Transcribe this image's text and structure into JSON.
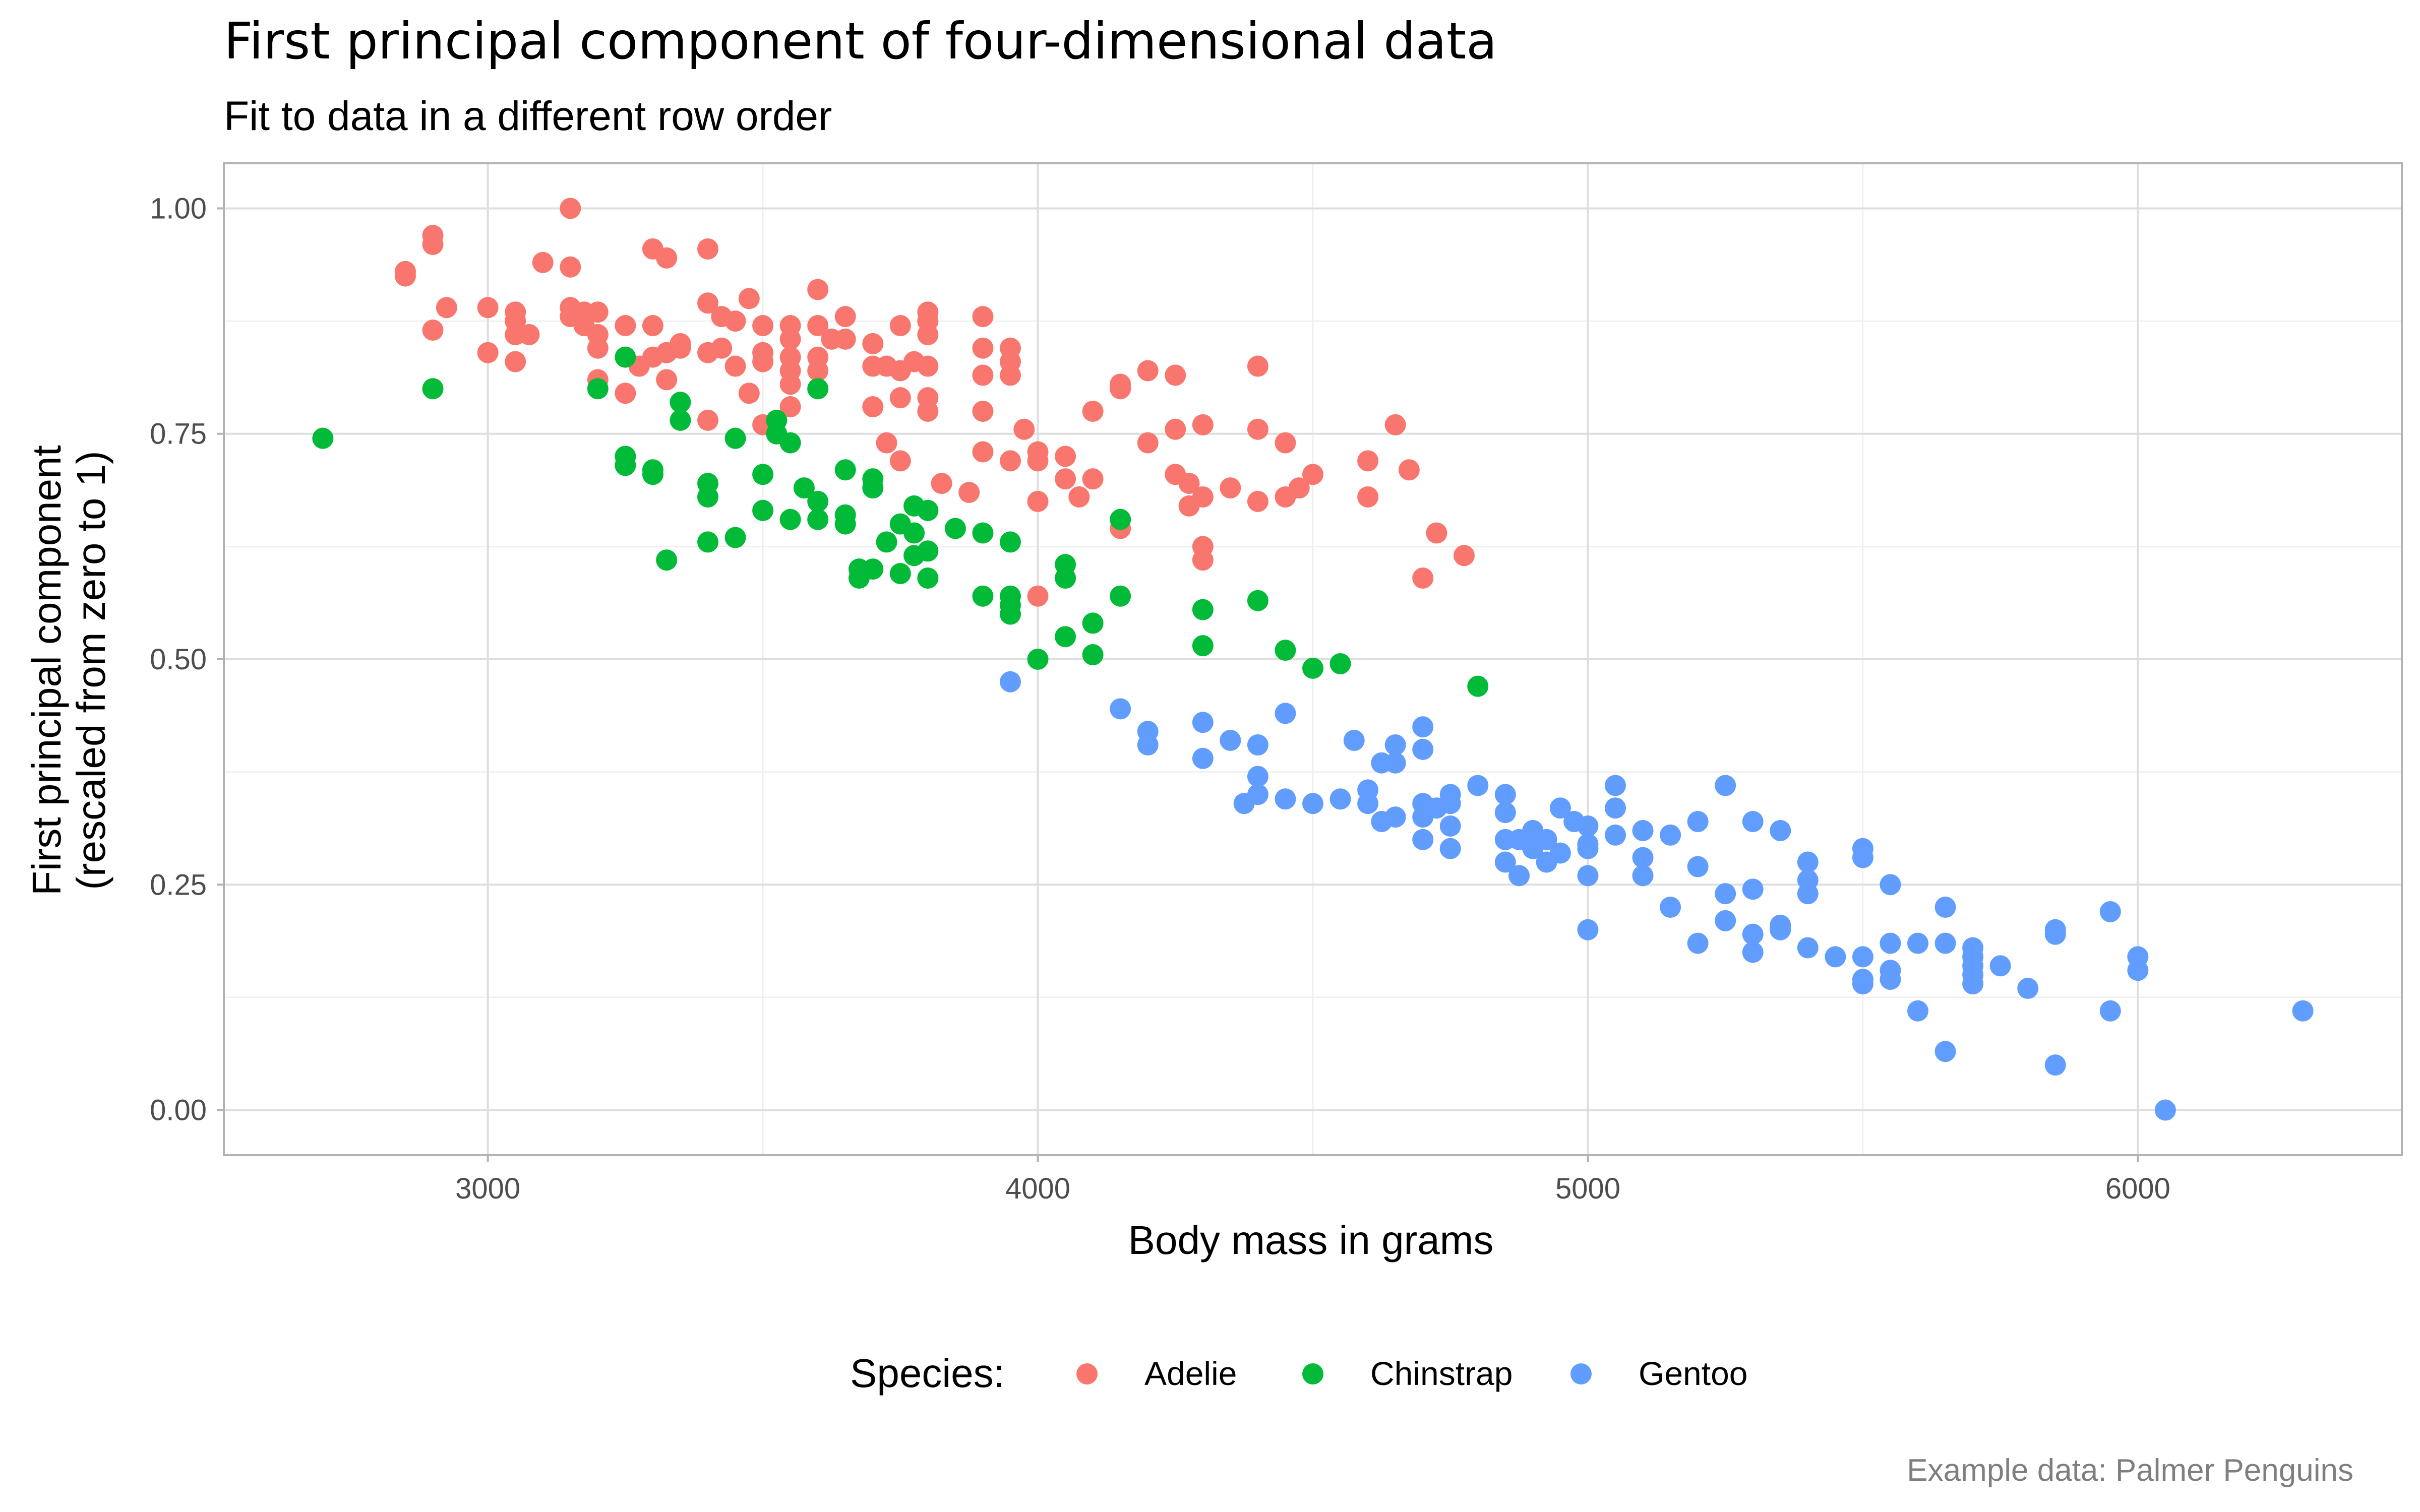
{
  "chart_data": {
    "type": "scatter",
    "title": "First principal component of four-dimensional data",
    "subtitle": "Fit to data in a different row order",
    "xlabel": "Body mass in grams",
    "ylabel_lines": [
      "First principal component",
      "(rescaled from zero to 1)"
    ],
    "caption": "Example data: Palmer Penguins",
    "xlim": [
      2520,
      6480
    ],
    "ylim": [
      -0.05,
      1.05
    ],
    "x_ticks": [
      3000,
      4000,
      5000,
      6000
    ],
    "x_tick_labels": [
      "3000",
      "4000",
      "5000",
      "6000"
    ],
    "y_ticks": [
      0,
      0.25,
      0.5,
      0.75,
      1
    ],
    "y_tick_labels": [
      "0.00",
      "0.25",
      "0.50",
      "0.75",
      "1.00"
    ],
    "grid": true,
    "legend_position": "bottom",
    "legend_title": "Species:",
    "series": [
      {
        "name": "Adelie",
        "color": "#F8766D",
        "points": [
          [
            2850,
            0.93
          ],
          [
            2850,
            0.925
          ],
          [
            2900,
            0.97
          ],
          [
            2900,
            0.96
          ],
          [
            2900,
            0.865
          ],
          [
            2925,
            0.89
          ],
          [
            3000,
            0.89
          ],
          [
            3000,
            0.84
          ],
          [
            3050,
            0.885
          ],
          [
            3050,
            0.875
          ],
          [
            3050,
            0.86
          ],
          [
            3050,
            0.83
          ],
          [
            3075,
            0.86
          ],
          [
            3100,
            0.94
          ],
          [
            3150,
            1.0
          ],
          [
            3150,
            0.935
          ],
          [
            3150,
            0.89
          ],
          [
            3150,
            0.88
          ],
          [
            3175,
            0.885
          ],
          [
            3175,
            0.87
          ],
          [
            3200,
            0.885
          ],
          [
            3200,
            0.86
          ],
          [
            3200,
            0.845
          ],
          [
            3200,
            0.81
          ],
          [
            3250,
            0.87
          ],
          [
            3250,
            0.795
          ],
          [
            3275,
            0.825
          ],
          [
            3300,
            0.955
          ],
          [
            3300,
            0.87
          ],
          [
            3300,
            0.835
          ],
          [
            3325,
            0.945
          ],
          [
            3325,
            0.84
          ],
          [
            3325,
            0.81
          ],
          [
            3350,
            0.85
          ],
          [
            3350,
            0.845
          ],
          [
            3400,
            0.955
          ],
          [
            3400,
            0.895
          ],
          [
            3400,
            0.84
          ],
          [
            3400,
            0.765
          ],
          [
            3425,
            0.88
          ],
          [
            3425,
            0.845
          ],
          [
            3450,
            0.875
          ],
          [
            3450,
            0.825
          ],
          [
            3475,
            0.9
          ],
          [
            3475,
            0.795
          ],
          [
            3500,
            0.87
          ],
          [
            3500,
            0.84
          ],
          [
            3500,
            0.83
          ],
          [
            3500,
            0.76
          ],
          [
            3525,
            0.75
          ],
          [
            3550,
            0.87
          ],
          [
            3550,
            0.855
          ],
          [
            3550,
            0.835
          ],
          [
            3550,
            0.82
          ],
          [
            3550,
            0.805
          ],
          [
            3550,
            0.78
          ],
          [
            3600,
            0.91
          ],
          [
            3600,
            0.87
          ],
          [
            3600,
            0.835
          ],
          [
            3600,
            0.82
          ],
          [
            3625,
            0.855
          ],
          [
            3650,
            0.88
          ],
          [
            3650,
            0.855
          ],
          [
            3700,
            0.85
          ],
          [
            3700,
            0.825
          ],
          [
            3700,
            0.78
          ],
          [
            3725,
            0.825
          ],
          [
            3725,
            0.74
          ],
          [
            3750,
            0.87
          ],
          [
            3750,
            0.82
          ],
          [
            3750,
            0.79
          ],
          [
            3750,
            0.72
          ],
          [
            3775,
            0.83
          ],
          [
            3800,
            0.885
          ],
          [
            3800,
            0.875
          ],
          [
            3800,
            0.86
          ],
          [
            3800,
            0.825
          ],
          [
            3800,
            0.79
          ],
          [
            3800,
            0.775
          ],
          [
            3825,
            0.695
          ],
          [
            3875,
            0.685
          ],
          [
            3900,
            0.88
          ],
          [
            3900,
            0.845
          ],
          [
            3900,
            0.815
          ],
          [
            3900,
            0.775
          ],
          [
            3900,
            0.73
          ],
          [
            3950,
            0.845
          ],
          [
            3950,
            0.83
          ],
          [
            3950,
            0.815
          ],
          [
            3950,
            0.72
          ],
          [
            3975,
            0.755
          ],
          [
            4000,
            0.73
          ],
          [
            4000,
            0.72
          ],
          [
            4000,
            0.675
          ],
          [
            4000,
            0.57
          ],
          [
            4050,
            0.725
          ],
          [
            4050,
            0.7
          ],
          [
            4075,
            0.68
          ],
          [
            4100,
            0.775
          ],
          [
            4100,
            0.7
          ],
          [
            4150,
            0.805
          ],
          [
            4150,
            0.8
          ],
          [
            4150,
            0.645
          ],
          [
            4200,
            0.82
          ],
          [
            4200,
            0.74
          ],
          [
            4250,
            0.815
          ],
          [
            4250,
            0.755
          ],
          [
            4250,
            0.705
          ],
          [
            4275,
            0.695
          ],
          [
            4275,
            0.67
          ],
          [
            4300,
            0.76
          ],
          [
            4300,
            0.68
          ],
          [
            4300,
            0.625
          ],
          [
            4300,
            0.61
          ],
          [
            4350,
            0.69
          ],
          [
            4400,
            0.825
          ],
          [
            4400,
            0.755
          ],
          [
            4400,
            0.675
          ],
          [
            4450,
            0.74
          ],
          [
            4450,
            0.68
          ],
          [
            4475,
            0.69
          ],
          [
            4500,
            0.705
          ],
          [
            4600,
            0.72
          ],
          [
            4600,
            0.68
          ],
          [
            4650,
            0.76
          ],
          [
            4675,
            0.71
          ],
          [
            4700,
            0.59
          ],
          [
            4725,
            0.64
          ],
          [
            4775,
            0.615
          ]
        ]
      },
      {
        "name": "Chinstrap",
        "color": "#00BA38",
        "points": [
          [
            2700,
            0.745
          ],
          [
            2900,
            0.8
          ],
          [
            3200,
            0.8
          ],
          [
            3250,
            0.835
          ],
          [
            3250,
            0.725
          ],
          [
            3250,
            0.715
          ],
          [
            3300,
            0.71
          ],
          [
            3300,
            0.705
          ],
          [
            3325,
            0.61
          ],
          [
            3350,
            0.785
          ],
          [
            3350,
            0.765
          ],
          [
            3400,
            0.695
          ],
          [
            3400,
            0.68
          ],
          [
            3400,
            0.63
          ],
          [
            3450,
            0.745
          ],
          [
            3450,
            0.635
          ],
          [
            3500,
            0.705
          ],
          [
            3500,
            0.665
          ],
          [
            3525,
            0.765
          ],
          [
            3525,
            0.75
          ],
          [
            3550,
            0.74
          ],
          [
            3550,
            0.655
          ],
          [
            3575,
            0.69
          ],
          [
            3600,
            0.8
          ],
          [
            3600,
            0.675
          ],
          [
            3600,
            0.655
          ],
          [
            3650,
            0.71
          ],
          [
            3650,
            0.66
          ],
          [
            3650,
            0.65
          ],
          [
            3675,
            0.6
          ],
          [
            3675,
            0.59
          ],
          [
            3700,
            0.7
          ],
          [
            3700,
            0.69
          ],
          [
            3700,
            0.6
          ],
          [
            3725,
            0.63
          ],
          [
            3750,
            0.65
          ],
          [
            3750,
            0.595
          ],
          [
            3775,
            0.67
          ],
          [
            3775,
            0.64
          ],
          [
            3775,
            0.615
          ],
          [
            3800,
            0.665
          ],
          [
            3800,
            0.62
          ],
          [
            3800,
            0.59
          ],
          [
            3850,
            0.645
          ],
          [
            3900,
            0.64
          ],
          [
            3900,
            0.57
          ],
          [
            3950,
            0.63
          ],
          [
            3950,
            0.57
          ],
          [
            3950,
            0.56
          ],
          [
            3950,
            0.55
          ],
          [
            4000,
            0.5
          ],
          [
            4050,
            0.605
          ],
          [
            4050,
            0.59
          ],
          [
            4050,
            0.525
          ],
          [
            4100,
            0.54
          ],
          [
            4100,
            0.505
          ],
          [
            4150,
            0.655
          ],
          [
            4150,
            0.57
          ],
          [
            4300,
            0.555
          ],
          [
            4300,
            0.515
          ],
          [
            4400,
            0.565
          ],
          [
            4450,
            0.51
          ],
          [
            4500,
            0.49
          ],
          [
            4550,
            0.495
          ],
          [
            4800,
            0.47
          ]
        ]
      },
      {
        "name": "Gentoo",
        "color": "#619CFF",
        "points": [
          [
            3950,
            0.475
          ],
          [
            4150,
            0.445
          ],
          [
            4200,
            0.42
          ],
          [
            4200,
            0.405
          ],
          [
            4300,
            0.43
          ],
          [
            4300,
            0.39
          ],
          [
            4350,
            0.41
          ],
          [
            4375,
            0.34
          ],
          [
            4400,
            0.405
          ],
          [
            4400,
            0.37
          ],
          [
            4400,
            0.35
          ],
          [
            4450,
            0.44
          ],
          [
            4450,
            0.345
          ],
          [
            4500,
            0.34
          ],
          [
            4550,
            0.345
          ],
          [
            4575,
            0.41
          ],
          [
            4600,
            0.355
          ],
          [
            4600,
            0.34
          ],
          [
            4625,
            0.385
          ],
          [
            4625,
            0.32
          ],
          [
            4650,
            0.405
          ],
          [
            4650,
            0.385
          ],
          [
            4650,
            0.325
          ],
          [
            4700,
            0.425
          ],
          [
            4700,
            0.4
          ],
          [
            4700,
            0.34
          ],
          [
            4700,
            0.325
          ],
          [
            4700,
            0.3
          ],
          [
            4725,
            0.335
          ],
          [
            4750,
            0.35
          ],
          [
            4750,
            0.34
          ],
          [
            4750,
            0.315
          ],
          [
            4750,
            0.29
          ],
          [
            4800,
            0.36
          ],
          [
            4850,
            0.35
          ],
          [
            4850,
            0.33
          ],
          [
            4850,
            0.3
          ],
          [
            4850,
            0.275
          ],
          [
            4875,
            0.3
          ],
          [
            4875,
            0.26
          ],
          [
            4900,
            0.31
          ],
          [
            4900,
            0.3
          ],
          [
            4900,
            0.295
          ],
          [
            4900,
            0.29
          ],
          [
            4925,
            0.3
          ],
          [
            4925,
            0.275
          ],
          [
            4950,
            0.335
          ],
          [
            4950,
            0.285
          ],
          [
            4975,
            0.32
          ],
          [
            5000,
            0.315
          ],
          [
            5000,
            0.295
          ],
          [
            5000,
            0.29
          ],
          [
            5000,
            0.26
          ],
          [
            5000,
            0.2
          ],
          [
            5050,
            0.36
          ],
          [
            5050,
            0.335
          ],
          [
            5050,
            0.305
          ],
          [
            5100,
            0.31
          ],
          [
            5100,
            0.28
          ],
          [
            5100,
            0.26
          ],
          [
            5150,
            0.305
          ],
          [
            5150,
            0.225
          ],
          [
            5200,
            0.32
          ],
          [
            5200,
            0.27
          ],
          [
            5200,
            0.185
          ],
          [
            5250,
            0.36
          ],
          [
            5250,
            0.24
          ],
          [
            5250,
            0.21
          ],
          [
            5300,
            0.32
          ],
          [
            5300,
            0.245
          ],
          [
            5300,
            0.195
          ],
          [
            5300,
            0.175
          ],
          [
            5350,
            0.31
          ],
          [
            5350,
            0.205
          ],
          [
            5350,
            0.2
          ],
          [
            5400,
            0.275
          ],
          [
            5400,
            0.255
          ],
          [
            5400,
            0.24
          ],
          [
            5400,
            0.18
          ],
          [
            5450,
            0.17
          ],
          [
            5500,
            0.29
          ],
          [
            5500,
            0.28
          ],
          [
            5500,
            0.17
          ],
          [
            5500,
            0.145
          ],
          [
            5500,
            0.14
          ],
          [
            5550,
            0.25
          ],
          [
            5550,
            0.185
          ],
          [
            5550,
            0.155
          ],
          [
            5550,
            0.145
          ],
          [
            5600,
            0.185
          ],
          [
            5600,
            0.11
          ],
          [
            5650,
            0.225
          ],
          [
            5650,
            0.185
          ],
          [
            5650,
            0.065
          ],
          [
            5700,
            0.18
          ],
          [
            5700,
            0.17
          ],
          [
            5700,
            0.16
          ],
          [
            5700,
            0.15
          ],
          [
            5700,
            0.14
          ],
          [
            5750,
            0.16
          ],
          [
            5800,
            0.135
          ],
          [
            5850,
            0.2
          ],
          [
            5850,
            0.195
          ],
          [
            5850,
            0.05
          ],
          [
            5950,
            0.22
          ],
          [
            5950,
            0.11
          ],
          [
            6000,
            0.17
          ],
          [
            6000,
            0.155
          ],
          [
            6050,
            0.0
          ],
          [
            6300,
            0.11
          ]
        ]
      }
    ]
  }
}
